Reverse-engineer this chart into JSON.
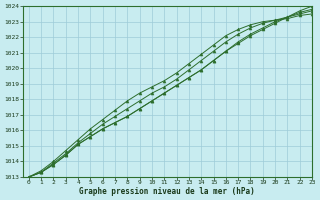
{
  "title": "",
  "xlabel": "Graphe pression niveau de la mer (hPa)",
  "ylabel": "",
  "bg_color": "#c8ecf0",
  "grid_color": "#9eccd8",
  "line_color": "#2d6e2d",
  "marker_color": "#2d6e2d",
  "xlim": [
    -0.5,
    23
  ],
  "ylim": [
    1013,
    1024
  ],
  "yticks": [
    1013,
    1014,
    1015,
    1016,
    1017,
    1018,
    1019,
    1020,
    1021,
    1022,
    1023,
    1024
  ],
  "xticks": [
    0,
    1,
    2,
    3,
    4,
    5,
    6,
    7,
    8,
    9,
    10,
    11,
    12,
    13,
    14,
    15,
    16,
    17,
    18,
    19,
    20,
    21,
    22,
    23
  ],
  "series": [
    [
      1013.0,
      1013.3,
      1013.8,
      1014.4,
      1015.1,
      1015.6,
      1016.1,
      1016.5,
      1016.9,
      1017.4,
      1017.9,
      1018.4,
      1018.9,
      1019.4,
      1019.9,
      1020.5,
      1021.1,
      1021.7,
      1022.2,
      1022.6,
      1023.0,
      1023.3,
      1023.7,
      1024.0
    ],
    [
      1013.0,
      1013.3,
      1013.8,
      1014.4,
      1015.1,
      1015.6,
      1016.1,
      1016.5,
      1016.9,
      1017.4,
      1017.9,
      1018.4,
      1018.9,
      1019.4,
      1019.9,
      1020.5,
      1021.1,
      1021.6,
      1022.1,
      1022.5,
      1022.9,
      1023.3,
      1023.6,
      1023.8
    ],
    [
      1013.0,
      1013.3,
      1013.9,
      1014.5,
      1015.2,
      1015.8,
      1016.4,
      1016.9,
      1017.4,
      1017.9,
      1018.4,
      1018.8,
      1019.3,
      1019.9,
      1020.5,
      1021.1,
      1021.7,
      1022.2,
      1022.6,
      1022.9,
      1023.1,
      1023.3,
      1023.5,
      1023.7
    ],
    [
      1013.0,
      1013.4,
      1014.0,
      1014.7,
      1015.4,
      1016.1,
      1016.7,
      1017.3,
      1017.9,
      1018.4,
      1018.8,
      1019.2,
      1019.7,
      1020.3,
      1020.9,
      1021.5,
      1022.1,
      1022.5,
      1022.8,
      1023.0,
      1023.1,
      1023.2,
      1023.4,
      1023.5
    ]
  ],
  "xlabel_fontsize": 5.5,
  "tick_fontsize": 4.5,
  "linewidth": 0.7,
  "markersize": 2.2
}
